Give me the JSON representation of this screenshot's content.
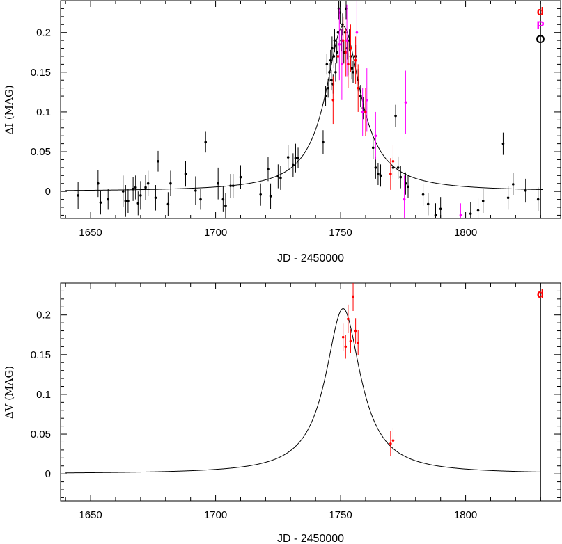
{
  "chart_data": [
    {
      "type": "scatter",
      "xlabel": "JD - 2450000",
      "ylabel": "ΔI (MAG)",
      "xlim": [
        1638,
        1838
      ],
      "ylim": [
        -0.034,
        0.24
      ],
      "xticks": [
        1650,
        1700,
        1750,
        1800
      ],
      "yticks": [
        0,
        0.05,
        0.1,
        0.15,
        0.2
      ],
      "xtick_labels": [
        "1650",
        "1700",
        "1750",
        "1800"
      ],
      "ytick_labels": [
        "0",
        "0.05",
        "0.1",
        "0.15",
        "0.2"
      ],
      "vline_x": 1830,
      "legend": [
        {
          "label": "d",
          "color": "#ff0000"
        },
        {
          "label": "P",
          "color": "#ff00ff"
        },
        {
          "label": "O",
          "color": "#000000"
        }
      ],
      "model": {
        "t0": 1751,
        "peak": 0.208,
        "width": 8.5,
        "x_range": [
          1640,
          1831
        ]
      },
      "series": [
        {
          "label": "O",
          "color": "#000000",
          "points": [
            [
              1645,
              -0.005,
              0.017
            ],
            [
              1653,
              0.01,
              0.017
            ],
            [
              1654,
              -0.014,
              0.015
            ],
            [
              1657,
              -0.01,
              0.013
            ],
            [
              1663,
              0.0,
              0.02
            ],
            [
              1664,
              -0.012,
              0.02
            ],
            [
              1665,
              -0.012,
              0.015
            ],
            [
              1667,
              0.003,
              0.015
            ],
            [
              1668,
              0.005,
              0.015
            ],
            [
              1669,
              -0.015,
              0.015
            ],
            [
              1670,
              -0.005,
              0.018
            ],
            [
              1672,
              0.005,
              0.016
            ],
            [
              1673,
              0.01,
              0.016
            ],
            [
              1676,
              -0.008,
              0.016
            ],
            [
              1677,
              0.038,
              0.013
            ],
            [
              1681,
              -0.016,
              0.015
            ],
            [
              1682,
              0.01,
              0.016
            ],
            [
              1688,
              0.022,
              0.016
            ],
            [
              1692,
              0.001,
              0.018
            ],
            [
              1694,
              -0.01,
              0.013
            ],
            [
              1696,
              0.062,
              0.013
            ],
            [
              1701,
              0.01,
              0.02
            ],
            [
              1703,
              -0.01,
              0.016
            ],
            [
              1704,
              -0.018,
              0.016
            ],
            [
              1706,
              0.007,
              0.015
            ],
            [
              1707,
              0.007,
              0.015
            ],
            [
              1710,
              0.018,
              0.015
            ],
            [
              1718,
              -0.004,
              0.014
            ],
            [
              1721,
              0.028,
              0.015
            ],
            [
              1722,
              -0.006,
              0.016
            ],
            [
              1725,
              0.019,
              0.015
            ],
            [
              1726,
              0.017,
              0.015
            ],
            [
              1729,
              0.043,
              0.015
            ],
            [
              1731,
              0.033,
              0.015
            ],
            [
              1732,
              0.042,
              0.018
            ],
            [
              1733,
              0.042,
              0.013
            ],
            [
              1743,
              0.062,
              0.015
            ],
            [
              1744,
              0.12,
              0.013
            ],
            [
              1744.5,
              0.16,
              0.013
            ],
            [
              1745,
              0.13,
              0.012
            ],
            [
              1745.5,
              0.15,
              0.012
            ],
            [
              1746,
              0.165,
              0.013
            ],
            [
              1746.3,
              0.14,
              0.013
            ],
            [
              1746.6,
              0.18,
              0.015
            ],
            [
              1747,
              0.135,
              0.012
            ],
            [
              1747.3,
              0.17,
              0.015
            ],
            [
              1747.6,
              0.19,
              0.015
            ],
            [
              1748,
              0.15,
              0.012
            ],
            [
              1748.5,
              0.175,
              0.014
            ],
            [
              1749,
              0.2,
              0.014
            ],
            [
              1749.3,
              0.23,
              0.014
            ],
            [
              1749.8,
              0.225,
              0.014
            ],
            [
              1750.3,
              0.19,
              0.014
            ],
            [
              1750.8,
              0.21,
              0.014
            ],
            [
              1751.3,
              0.175,
              0.014
            ],
            [
              1751.8,
              0.2,
              0.014
            ],
            [
              1752.2,
              0.23,
              0.014
            ],
            [
              1752.6,
              0.18,
              0.014
            ],
            [
              1753,
              0.16,
              0.014
            ],
            [
              1753.5,
              0.19,
              0.014
            ],
            [
              1754,
              0.17,
              0.014
            ],
            [
              1754.5,
              0.155,
              0.014
            ],
            [
              1755,
              0.15,
              0.014
            ],
            [
              1756,
              0.17,
              0.014
            ],
            [
              1757,
              0.14,
              0.014
            ],
            [
              1758,
              0.12,
              0.014
            ],
            [
              1759,
              0.105,
              0.014
            ],
            [
              1760,
              0.1,
              0.014
            ],
            [
              1763,
              0.055,
              0.014
            ],
            [
              1764,
              0.03,
              0.014
            ],
            [
              1765,
              0.022,
              0.014
            ],
            [
              1766,
              0.02,
              0.014
            ],
            [
              1771,
              0.03,
              0.014
            ],
            [
              1772,
              0.095,
              0.014
            ],
            [
              1773,
              0.03,
              0.014
            ],
            [
              1774,
              0.018,
              0.014
            ],
            [
              1776,
              0.01,
              0.014
            ],
            [
              1777,
              0.006,
              0.014
            ],
            [
              1783,
              -0.004,
              0.014
            ],
            [
              1785,
              -0.016,
              0.014
            ],
            [
              1788,
              -0.03,
              0.015
            ],
            [
              1790,
              -0.022,
              0.015
            ],
            [
              1802,
              -0.028,
              0.015
            ],
            [
              1805,
              -0.024,
              0.015
            ],
            [
              1807,
              -0.012,
              0.015
            ],
            [
              1815,
              0.06,
              0.014
            ],
            [
              1817,
              -0.008,
              0.015
            ],
            [
              1819,
              0.009,
              0.014
            ],
            [
              1824,
              0.001,
              0.015
            ],
            [
              1829,
              -0.01,
              0.015
            ]
          ]
        },
        {
          "label": "d",
          "color": "#ff0000",
          "points": [
            [
              1747,
              0.115,
              0.03
            ],
            [
              1749,
              0.17,
              0.03
            ],
            [
              1751,
              0.19,
              0.03
            ],
            [
              1752,
              0.175,
              0.03
            ],
            [
              1753,
              0.16,
              0.03
            ],
            [
              1754,
              0.18,
              0.03
            ],
            [
              1756,
              0.165,
              0.03
            ],
            [
              1757,
              0.13,
              0.03
            ],
            [
              1760,
              0.1,
              0.03
            ],
            [
              1770,
              0.022,
              0.02
            ],
            [
              1771,
              0.038,
              0.02
            ]
          ]
        },
        {
          "label": "P",
          "color": "#ff00ff",
          "points": [
            [
              1749.5,
              0.185,
              0.045
            ],
            [
              1750.5,
              0.16,
              0.045
            ],
            [
              1752.5,
              0.19,
              0.045
            ],
            [
              1756.5,
              0.2,
              0.04
            ],
            [
              1758.8,
              0.1,
              0.03
            ],
            [
              1760.5,
              0.115,
              0.04
            ],
            [
              1764,
              0.07,
              0.03
            ],
            [
              1776,
              0.112,
              0.04
            ],
            [
              1775.5,
              -0.01,
              0.03
            ],
            [
              1798,
              -0.03,
              0.015
            ]
          ]
        }
      ]
    },
    {
      "type": "scatter",
      "xlabel": "JD - 2450000",
      "ylabel": "ΔV (MAG)",
      "xlim": [
        1638,
        1838
      ],
      "ylim": [
        -0.034,
        0.24
      ],
      "xticks": [
        1650,
        1700,
        1750,
        1800
      ],
      "yticks": [
        0,
        0.05,
        0.1,
        0.15,
        0.2
      ],
      "xtick_labels": [
        "1650",
        "1700",
        "1750",
        "1800"
      ],
      "ytick_labels": [
        "0",
        "0.05",
        "0.1",
        "0.15",
        "0.2"
      ],
      "vline_x": 1830,
      "legend": [
        {
          "label": "d",
          "color": "#ff0000"
        }
      ],
      "model": {
        "t0": 1751,
        "peak": 0.208,
        "width": 8.5,
        "x_range": [
          1640,
          1831
        ]
      },
      "series": [
        {
          "label": "d",
          "color": "#ff0000",
          "points": [
            [
              1751,
              0.172,
              0.017
            ],
            [
              1752,
              0.16,
              0.015
            ],
            [
              1753,
              0.195,
              0.018
            ],
            [
              1754,
              0.167,
              0.015
            ],
            [
              1755,
              0.223,
              0.018
            ],
            [
              1756,
              0.18,
              0.016
            ],
            [
              1757,
              0.165,
              0.016
            ],
            [
              1770,
              0.038,
              0.016
            ],
            [
              1771,
              0.042,
              0.016
            ]
          ]
        }
      ]
    }
  ]
}
